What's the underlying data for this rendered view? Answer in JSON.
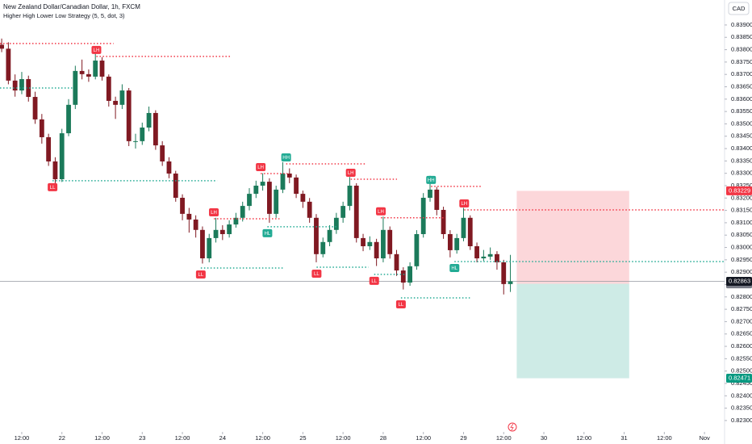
{
  "chart_data": {
    "type": "candlestick",
    "title": "New Zealand Dollar/Canadian Dollar, 1h, FXCM",
    "subtitle": "Higher High Lower Low Strategy (5, 5, dot, 3)",
    "currency": "CAD",
    "up_color": "#1b7a5a",
    "down_color": "#801922",
    "x": [
      6,
      8,
      10,
      12,
      14,
      16,
      18,
      20,
      22,
      24,
      26,
      28,
      30,
      32,
      34,
      36,
      38,
      40,
      42,
      44,
      46,
      48,
      50,
      52,
      54,
      56,
      58,
      60,
      62,
      64,
      66,
      68,
      70,
      72,
      74,
      76,
      78,
      80,
      82,
      84,
      86,
      88,
      90,
      92,
      94,
      96,
      98,
      100,
      102,
      104,
      106,
      108,
      110,
      112,
      114,
      116,
      118,
      120,
      122,
      124,
      126,
      128,
      130,
      132,
      134,
      136,
      138,
      140,
      142,
      144,
      146,
      148,
      150,
      152,
      154,
      156,
      158
    ],
    "open": [
      0.8382,
      0.83804,
      0.83675,
      0.83635,
      0.83681,
      0.83609,
      0.83518,
      0.83446,
      0.83348,
      0.83276,
      0.83462,
      0.83577,
      0.83714,
      0.83701,
      0.83691,
      0.83756,
      0.83691,
      0.83593,
      0.83577,
      0.83635,
      0.8343,
      0.8343,
      0.83485,
      0.83544,
      0.83413,
      0.83348,
      0.83299,
      0.83201,
      0.83136,
      0.83113,
      0.83071,
      0.82956,
      0.83038,
      0.83071,
      0.83054,
      0.83093,
      0.8312,
      0.83168,
      0.83217,
      0.8325,
      0.83266,
      0.83136,
      0.83234,
      0.83299,
      0.83283,
      0.83217,
      0.83185,
      0.8312,
      0.82973,
      0.83022,
      0.83071,
      0.8312,
      0.83168,
      0.8325,
      0.83038,
      0.83005,
      0.83022,
      0.82956,
      0.83071,
      0.82973,
      0.82907,
      0.82858,
      0.82924,
      0.83054,
      0.83201,
      0.83234,
      0.83152,
      0.83054,
      0.82989,
      0.83038,
      0.8312,
      0.83005,
      0.82956,
      0.82963,
      0.82973,
      0.8294,
      0.82852
    ],
    "high": [
      0.83845,
      0.8383,
      0.837,
      0.8371,
      0.83695,
      0.8363,
      0.8354,
      0.8346,
      0.83365,
      0.8348,
      0.836,
      0.83735,
      0.8376,
      0.8372,
      0.8379,
      0.8377,
      0.837,
      0.8361,
      0.8366,
      0.83645,
      0.8346,
      0.83505,
      0.8357,
      0.83555,
      0.8343,
      0.83365,
      0.8331,
      0.83215,
      0.8316,
      0.8313,
      0.83085,
      0.83055,
      0.8312,
      0.8309,
      0.8311,
      0.8314,
      0.83185,
      0.8324,
      0.8327,
      0.833,
      0.8328,
      0.8325,
      0.83345,
      0.8332,
      0.83295,
      0.8323,
      0.832,
      0.83135,
      0.8304,
      0.8309,
      0.8314,
      0.83185,
      0.83285,
      0.8326,
      0.83055,
      0.83045,
      0.83035,
      0.83125,
      0.83085,
      0.8299,
      0.8292,
      0.8294,
      0.8307,
      0.8322,
      0.8329,
      0.83245,
      0.83165,
      0.8307,
      0.83055,
      0.8316,
      0.8313,
      0.8302,
      0.8299,
      0.83,
      0.82985,
      0.8295,
      0.8297
    ],
    "low": [
      0.8379,
      0.8366,
      0.8361,
      0.8362,
      0.8359,
      0.835,
      0.8342,
      0.8333,
      0.8326,
      0.83265,
      0.8345,
      0.8356,
      0.8368,
      0.8367,
      0.8368,
      0.83675,
      0.8357,
      0.8352,
      0.8356,
      0.8341,
      0.834,
      0.83415,
      0.8347,
      0.83395,
      0.8333,
      0.8328,
      0.83185,
      0.8311,
      0.8306,
      0.8304,
      0.82935,
      0.8294,
      0.8302,
      0.8303,
      0.8304,
      0.8308,
      0.83105,
      0.8315,
      0.832,
      0.8323,
      0.831,
      0.8312,
      0.8322,
      0.8326,
      0.832,
      0.8316,
      0.831,
      0.8294,
      0.8296,
      0.83005,
      0.83055,
      0.831,
      0.8315,
      0.8302,
      0.82985,
      0.8299,
      0.82925,
      0.8294,
      0.82955,
      0.82885,
      0.8283,
      0.82845,
      0.8291,
      0.8304,
      0.83185,
      0.8313,
      0.83035,
      0.8296,
      0.82975,
      0.83025,
      0.8299,
      0.8294,
      0.82945,
      0.8295,
      0.8291,
      0.8281,
      0.8282
    ],
    "close": [
      0.83804,
      0.83675,
      0.83635,
      0.83681,
      0.83609,
      0.83518,
      0.83446,
      0.83348,
      0.83276,
      0.83462,
      0.83577,
      0.83714,
      0.83701,
      0.83691,
      0.83756,
      0.83691,
      0.83593,
      0.83577,
      0.83635,
      0.8343,
      0.8343,
      0.83485,
      0.83544,
      0.83413,
      0.83348,
      0.83299,
      0.83201,
      0.83136,
      0.83113,
      0.83071,
      0.82956,
      0.83038,
      0.83071,
      0.83054,
      0.83093,
      0.8312,
      0.83168,
      0.83217,
      0.8325,
      0.83266,
      0.83136,
      0.83234,
      0.83299,
      0.83283,
      0.83217,
      0.83185,
      0.8312,
      0.82973,
      0.83022,
      0.83071,
      0.8312,
      0.83168,
      0.8325,
      0.83038,
      0.83005,
      0.83022,
      0.82956,
      0.83071,
      0.82973,
      0.82907,
      0.82858,
      0.82924,
      0.83054,
      0.83201,
      0.83234,
      0.83152,
      0.83054,
      0.82989,
      0.83038,
      0.8312,
      0.83005,
      0.82956,
      0.82963,
      0.82973,
      0.8294,
      0.82852,
      0.82863
    ],
    "xlim": [
      5.5,
      222
    ],
    "ylim": [
      0.82254,
      0.84001
    ],
    "xticks": [
      {
        "value": 12,
        "label": "12:00"
      },
      {
        "value": 24,
        "label": "22"
      },
      {
        "value": 36,
        "label": "12:00"
      },
      {
        "value": 48,
        "label": "23"
      },
      {
        "value": 60,
        "label": "12:00"
      },
      {
        "value": 72,
        "label": "24"
      },
      {
        "value": 84,
        "label": "12:00"
      },
      {
        "value": 96,
        "label": "25"
      },
      {
        "value": 108,
        "label": "12:00"
      },
      {
        "value": 120,
        "label": "28"
      },
      {
        "value": 132,
        "label": "12:00"
      },
      {
        "value": 144,
        "label": "29"
      },
      {
        "value": 156,
        "label": "12:00"
      },
      {
        "value": 168,
        "label": "30"
      },
      {
        "value": 180,
        "label": "12:00"
      },
      {
        "value": 192,
        "label": "31"
      },
      {
        "value": 204,
        "label": "12:00"
      },
      {
        "value": 216,
        "label": "Nov"
      }
    ],
    "yticks": [
      {
        "value": 0.823,
        "label": "0.82300"
      },
      {
        "value": 0.8235,
        "label": "0.82350"
      },
      {
        "value": 0.824,
        "label": "0.82400"
      },
      {
        "value": 0.8245,
        "label": "0.82450"
      },
      {
        "value": 0.825,
        "label": "0.82500"
      },
      {
        "value": 0.8255,
        "label": "0.82550"
      },
      {
        "value": 0.826,
        "label": "0.82600"
      },
      {
        "value": 0.8265,
        "label": "0.82650"
      },
      {
        "value": 0.827,
        "label": "0.82700"
      },
      {
        "value": 0.8275,
        "label": "0.82750"
      },
      {
        "value": 0.828,
        "label": "0.82800"
      },
      {
        "value": 0.8285,
        "label": "0.82850"
      },
      {
        "value": 0.829,
        "label": "0.82900"
      },
      {
        "value": 0.8295,
        "label": "0.82950"
      },
      {
        "value": 0.83,
        "label": "0.83000"
      },
      {
        "value": 0.8305,
        "label": "0.83050"
      },
      {
        "value": 0.831,
        "label": "0.83100"
      },
      {
        "value": 0.8315,
        "label": "0.83150"
      },
      {
        "value": 0.832,
        "label": "0.83200"
      },
      {
        "value": 0.8325,
        "label": "0.83250"
      },
      {
        "value": 0.833,
        "label": "0.83300"
      },
      {
        "value": 0.8335,
        "label": "0.83350"
      },
      {
        "value": 0.834,
        "label": "0.83400"
      },
      {
        "value": 0.8345,
        "label": "0.83450"
      },
      {
        "value": 0.835,
        "label": "0.83500"
      },
      {
        "value": 0.8355,
        "label": "0.83550"
      },
      {
        "value": 0.836,
        "label": "0.83600"
      },
      {
        "value": 0.8365,
        "label": "0.83650"
      },
      {
        "value": 0.837,
        "label": "0.83700"
      },
      {
        "value": 0.8375,
        "label": "0.83750"
      },
      {
        "value": 0.838,
        "label": "0.83800"
      },
      {
        "value": 0.8385,
        "label": "0.83850"
      },
      {
        "value": 0.839,
        "label": "0.83900"
      }
    ],
    "levels": [
      {
        "x": 5.5,
        "x2": 39.4,
        "y": 0.83825,
        "color": "#f23645"
      },
      {
        "text": "LH",
        "x": 34.3,
        "x2": 74.5,
        "y": 0.83773,
        "color": "#f23645",
        "label_color": "#f23645"
      },
      {
        "x": 5.5,
        "x2": 27.3,
        "y": 0.83645,
        "color": "#22ab94"
      },
      {
        "text": "LL",
        "x": 21.2,
        "x2": 70.4,
        "y": 0.8327,
        "color": "#22ab94",
        "label_color": "#f23645"
      },
      {
        "text": "LH",
        "x": 69.4,
        "x2": 89,
        "y": 0.83116,
        "color": "#f23645",
        "label_color": "#f23645"
      },
      {
        "text": "HH",
        "x": 91,
        "x2": 115.1,
        "y": 0.83338,
        "color": "#f23645",
        "label_color": "#22ab94"
      },
      {
        "text": "LH",
        "x": 83.4,
        "x2": 91.4,
        "y": 0.83299,
        "color": "#f23645",
        "label_color": "#f23645"
      },
      {
        "text": "HL",
        "x": 85.4,
        "x2": 106,
        "y": 0.83084,
        "color": "#22ab94",
        "label_color": "#22ab94"
      },
      {
        "text": "LH",
        "x": 110.3,
        "x2": 124.1,
        "y": 0.83276,
        "color": "#f23645",
        "label_color": "#f23645"
      },
      {
        "text": "LL",
        "x": 65.5,
        "x2": 90.2,
        "y": 0.82917,
        "color": "#22ab94",
        "label_color": "#f23645"
      },
      {
        "text": "LL",
        "x": 100.1,
        "x2": 115.6,
        "y": 0.8292,
        "color": "#22ab94",
        "label_color": "#f23645"
      },
      {
        "text": "LH",
        "x": 119.3,
        "x2": 138.6,
        "y": 0.8312,
        "color": "#f23645",
        "label_color": "#f23645"
      },
      {
        "text": "LL",
        "x": 117.3,
        "x2": 126.5,
        "y": 0.82891,
        "color": "#22ab94",
        "label_color": "#f23645"
      },
      {
        "text": "LL",
        "x": 125.3,
        "x2": 145.9,
        "y": 0.82796,
        "color": "#22ab94",
        "label_color": "#f23645"
      },
      {
        "text": "HH",
        "x": 134.3,
        "x2": 149.5,
        "y": 0.83247,
        "color": "#f23645",
        "label_color": "#22ab94"
      },
      {
        "text": "HL",
        "x": 141.3,
        "x2": 222,
        "y": 0.82943,
        "color": "#22ab94",
        "label_color": "#22ab94"
      },
      {
        "text": "LH",
        "x": 144.2,
        "x2": 222,
        "y": 0.83152,
        "color": "#f23645",
        "label_color": "#f23645"
      }
    ],
    "position": {
      "x": 159.9,
      "x2": 193.5,
      "stop": 0.83229,
      "entry": 0.82853,
      "target": 0.82471
    },
    "last_price": 0.82863
  }
}
